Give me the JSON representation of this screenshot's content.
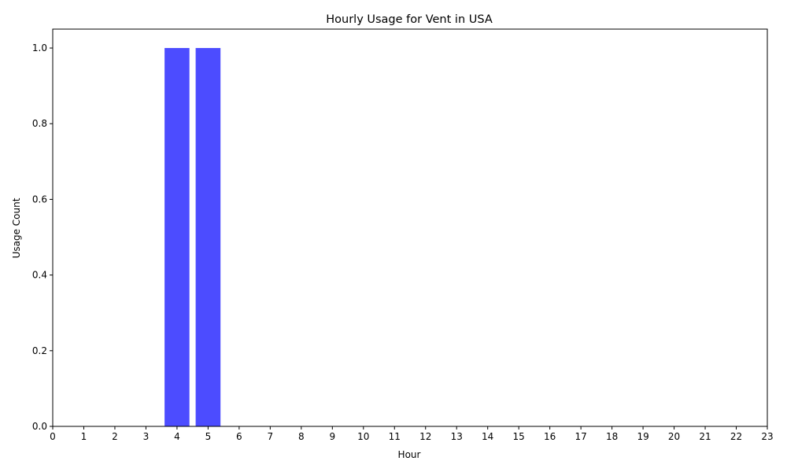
{
  "chart_data": {
    "type": "bar",
    "title": "Hourly Usage for Vent in USA",
    "xlabel": "Hour",
    "ylabel": "Usage Count",
    "categories": [
      "0",
      "1",
      "2",
      "3",
      "4",
      "5",
      "6",
      "7",
      "8",
      "9",
      "10",
      "11",
      "12",
      "13",
      "14",
      "15",
      "16",
      "17",
      "18",
      "19",
      "20",
      "21",
      "22",
      "23"
    ],
    "values": [
      0,
      0,
      0,
      0,
      1,
      1,
      0,
      0,
      0,
      0,
      0,
      0,
      0,
      0,
      0,
      0,
      0,
      0,
      0,
      0,
      0,
      0,
      0,
      0
    ],
    "xlim": [
      0,
      23
    ],
    "ylim": [
      0,
      1.05
    ],
    "yticks": [
      0.0,
      0.2,
      0.4,
      0.6,
      0.8,
      1.0
    ],
    "ytick_labels": [
      "0.0",
      "0.2",
      "0.4",
      "0.6",
      "0.8",
      "1.0"
    ],
    "bar_color": "#4c4cff",
    "grid": false,
    "legend": "none"
  }
}
